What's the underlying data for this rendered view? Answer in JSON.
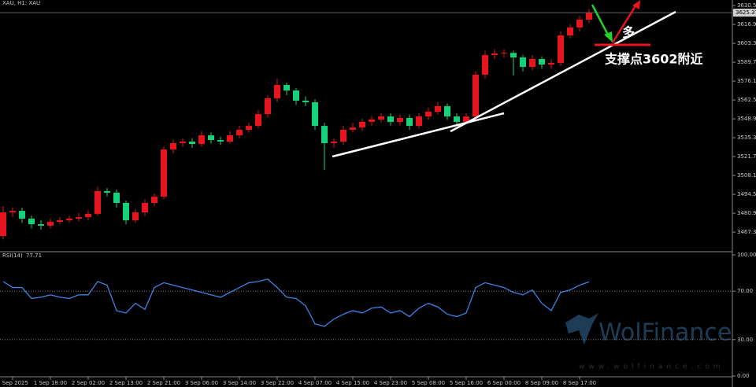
{
  "chart_data": [
    {
      "type": "candlestick",
      "title": "XAU, H1: XAU",
      "open": [
        3464.5,
        3481.5,
        3482.6,
        3477,
        3473,
        3471.9,
        3474.7,
        3475.8,
        3477,
        3478.1,
        3480.4,
        3496.8,
        3495.7,
        3488.3,
        3475.8,
        3481.5,
        3488.3,
        3492.8,
        3526.8,
        3531.4,
        3532.5,
        3530.8,
        3537,
        3533.6,
        3532.5,
        3537,
        3541,
        3543.8,
        3552.3,
        3563.7,
        3573.3,
        3569.3,
        3562,
        3560.8,
        3543.8,
        3531.4,
        3532.5,
        3541,
        3542.7,
        3546.7,
        3548.4,
        3550.6,
        3546.7,
        3549.5,
        3543.8,
        3550.6,
        3554,
        3558,
        3550.6,
        3546.7,
        3550.6,
        3580.7,
        3594.8,
        3596,
        3596.4,
        3593.1,
        3586.3,
        3592,
        3588,
        3589.2,
        3609,
        3614.7,
        3620.3
      ],
      "high": [
        3486,
        3485,
        3485,
        3479,
        3476,
        3477,
        3478,
        3479,
        3481,
        3483,
        3500,
        3499,
        3498,
        3490,
        3484,
        3491,
        3495,
        3529,
        3534,
        3535,
        3535,
        3540,
        3539,
        3536,
        3540,
        3544,
        3546,
        3555,
        3566,
        3578,
        3575,
        3571,
        3565,
        3563,
        3546,
        3535,
        3544,
        3546,
        3549,
        3551,
        3553,
        3553,
        3552,
        3552,
        3553,
        3557,
        3561,
        3560,
        3553,
        3553,
        3583,
        3598,
        3599,
        3599,
        3598,
        3595,
        3595,
        3594,
        3592,
        3612,
        3617,
        3623,
        3628
      ],
      "low": [
        3462,
        3478,
        3474,
        3470,
        3469,
        3470,
        3473,
        3474,
        3475,
        3476,
        3479,
        3493,
        3485,
        3473,
        3474,
        3479,
        3486,
        3491,
        3524,
        3529,
        3528,
        3529,
        3531,
        3530,
        3531,
        3535,
        3539,
        3542,
        3550,
        3561,
        3566,
        3559,
        3558,
        3541,
        3512,
        3528,
        3530,
        3539,
        3540,
        3544,
        3546,
        3544,
        3544,
        3541,
        3542,
        3548,
        3552,
        3548,
        3544,
        3545,
        3548,
        3578,
        3592,
        3593,
        3580,
        3583,
        3584,
        3585,
        3585,
        3587,
        3607,
        3612,
        3618
      ],
      "close": [
        3481.5,
        3482.6,
        3477,
        3473,
        3471.9,
        3474.7,
        3475.8,
        3477,
        3478.1,
        3480.4,
        3496.8,
        3495.7,
        3488.3,
        3475.8,
        3481.5,
        3488.3,
        3492.8,
        3526.8,
        3531.4,
        3532.5,
        3530.8,
        3537,
        3533.6,
        3532.5,
        3537,
        3541,
        3543.8,
        3552.3,
        3563.7,
        3573.3,
        3569.3,
        3562,
        3560.8,
        3543.8,
        3531.4,
        3532.5,
        3541,
        3542.7,
        3546.7,
        3548.4,
        3550.6,
        3546.7,
        3549.5,
        3543.8,
        3550.6,
        3554,
        3558,
        3550.6,
        3546.7,
        3550.6,
        3580.7,
        3594.8,
        3596,
        3596.4,
        3593.1,
        3586.3,
        3592,
        3588,
        3589.2,
        3609,
        3614.7,
        3620.3,
        3625.37
      ],
      "up_color": "#e8141e",
      "down_color": "#14d27a",
      "ylim": [
        3454.3,
        3634.5
      ],
      "yticks": [
        {
          "value": 3630.5,
          "label": "3630.50"
        },
        {
          "value": 3616.9,
          "label": "3616.90"
        },
        {
          "value": 3603.3,
          "label": "3603.30"
        },
        {
          "value": 3589.7,
          "label": "3589.70"
        },
        {
          "value": 3576.1,
          "label": "3576.10"
        },
        {
          "value": 3562.5,
          "label": "3562.50"
        },
        {
          "value": 3548.9,
          "label": "3548.90"
        },
        {
          "value": 3535.3,
          "label": "3535.30"
        },
        {
          "value": 3521.7,
          "label": "3521.70"
        },
        {
          "value": 3508.1,
          "label": "3508.10"
        },
        {
          "value": 3494.5,
          "label": "3494.50"
        },
        {
          "value": 3480.9,
          "label": "3480.90"
        },
        {
          "value": 3467.3,
          "label": "3467.30"
        }
      ],
      "xlim": [
        0,
        62
      ],
      "xticks": [
        {
          "value": 1,
          "label": "1 Sep 2025"
        },
        {
          "value": 5,
          "label": "1 Sep 18:00"
        },
        {
          "value": 9,
          "label": "2 Sep 02:00"
        },
        {
          "value": 13,
          "label": "2 Sep 13:00"
        },
        {
          "value": 17,
          "label": "2 Sep 21:00"
        },
        {
          "value": 21,
          "label": "3 Sep 06:00"
        },
        {
          "value": 25,
          "label": "3 Sep 14:00"
        },
        {
          "value": 29,
          "label": "3 Sep 22:00"
        },
        {
          "value": 33,
          "label": "4 Sep 07:00"
        },
        {
          "value": 37,
          "label": "4 Sep 15:00"
        },
        {
          "value": 41,
          "label": "4 Sep 23:00"
        },
        {
          "value": 45,
          "label": "5 Sep 08:00"
        },
        {
          "value": 49,
          "label": "5 Sep 16:00"
        },
        {
          "value": 53,
          "label": "6 Sep 00:00"
        },
        {
          "value": 57,
          "label": "8 Sep 09:00"
        },
        {
          "value": 61,
          "label": "8 Sep 17:00"
        }
      ],
      "annotations": [
        "多",
        "支撑点3602附近"
      ]
    },
    {
      "type": "line",
      "title": "RSI(14)",
      "series": [
        {
          "name": "RSI(14)",
          "color": "#3d82e6",
          "values": [
            78,
            73,
            73,
            64,
            65,
            67,
            65,
            64,
            67,
            67,
            78,
            75,
            54,
            52,
            60,
            55,
            73,
            77,
            75,
            73,
            71,
            69,
            67,
            65,
            69,
            73,
            77,
            78,
            80,
            73,
            65,
            64,
            58,
            43,
            41,
            47,
            51,
            54,
            52,
            56,
            57,
            52,
            54,
            49,
            56,
            60,
            57,
            51,
            49,
            52,
            73,
            77,
            75,
            73,
            69,
            67,
            71,
            60,
            54,
            69,
            71,
            75,
            77.71
          ]
        }
      ],
      "ylim": [
        0,
        100
      ],
      "yticks": [
        {
          "value": 100,
          "label": "100.00"
        },
        {
          "value": 70,
          "label": "70.00"
        },
        {
          "value": 30,
          "label": "30.00"
        },
        {
          "value": 0,
          "label": "0.00"
        }
      ]
    }
  ],
  "watermark": {
    "brand": "WolFinance",
    "url": "www.wolfinance.com"
  }
}
